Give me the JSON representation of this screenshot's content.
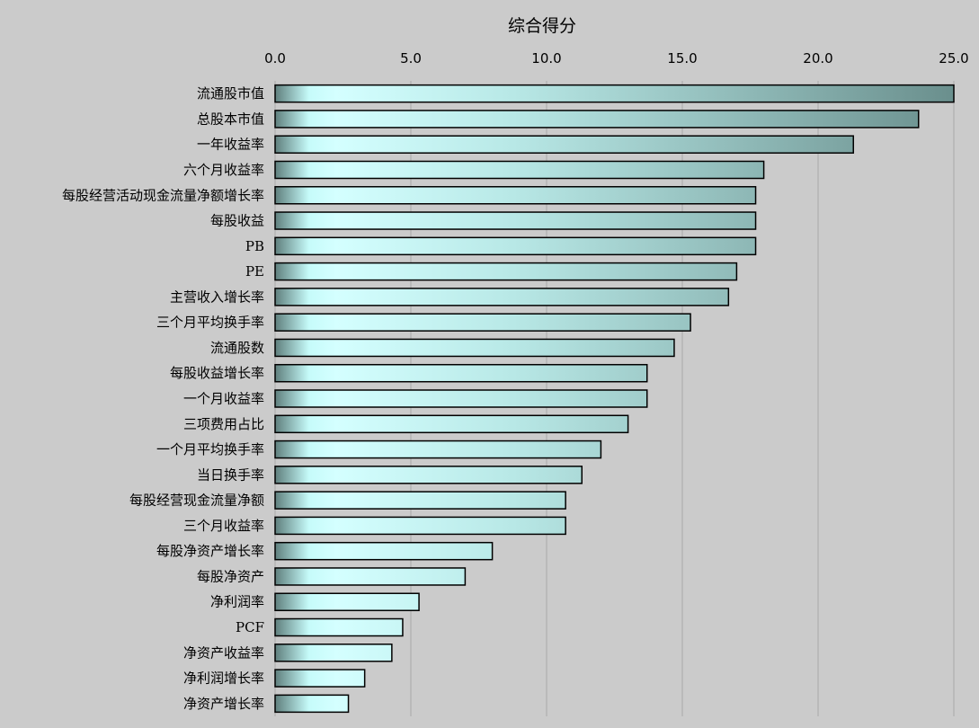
{
  "chart_data": {
    "type": "bar",
    "orientation": "horizontal",
    "title": "综合得分",
    "xlabel": "",
    "ylabel": "",
    "xlim": [
      0,
      25
    ],
    "x_ticks": [
      "0.0",
      "5.0",
      "10.0",
      "15.0",
      "20.0",
      "25.0"
    ],
    "x_axis_position": "top",
    "grid": true,
    "legend": "none",
    "bar_gradient": [
      "#5f7f7d",
      "#c6fbfa",
      "#d4ffff",
      "#b8e8e6",
      "#6a8f8d"
    ],
    "categories": [
      "流通股市值",
      "总股本市值",
      "一年收益率",
      "六个月收益率",
      "每股经营活动现金流量净额增长率",
      "每股收益",
      "PB",
      "PE",
      "主营收入增长率",
      "三个月平均换手率",
      "流通股数",
      "每股收益增长率",
      "一个月收益率",
      "三项费用占比",
      "一个月平均换手率",
      "当日换手率",
      "每股经营现金流量净额",
      "三个月收益率",
      "每股净资产增长率",
      "每股净资产",
      "净利润率",
      "PCF",
      "净资产收益率",
      "净利润增长率",
      "净资产增长率"
    ],
    "values": [
      25.0,
      23.7,
      21.3,
      18.0,
      17.7,
      17.7,
      17.7,
      17.0,
      16.7,
      15.3,
      14.7,
      13.7,
      13.7,
      13.0,
      12.0,
      11.3,
      10.7,
      10.7,
      8.0,
      7.0,
      5.3,
      4.7,
      4.3,
      3.3,
      2.7
    ]
  }
}
